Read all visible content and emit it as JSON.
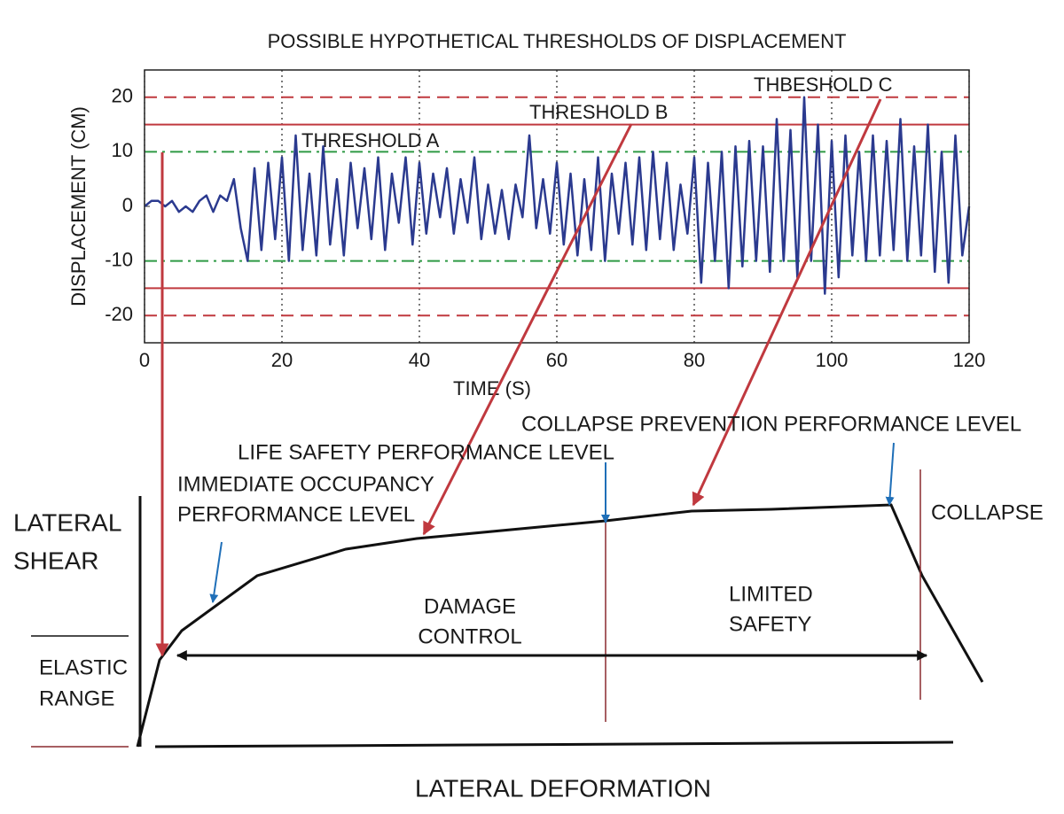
{
  "chart_data": {
    "type": "line",
    "title": "POSSIBLE HYPOTHETICAL THRESHOLDS OF DISPLACEMENT",
    "xlabel": "TIME (S)",
    "ylabel": "DISPLACEMENT (CM)",
    "xlim": [
      0,
      120
    ],
    "ylim": [
      -25,
      25
    ],
    "xticks": [
      0,
      20,
      40,
      60,
      80,
      100,
      120
    ],
    "yticks": [
      -20,
      -10,
      0,
      10,
      20
    ],
    "grid": true,
    "color": "#2b3a8f",
    "thresholds": [
      {
        "label": "THRESHOLD  A",
        "value": 10,
        "color": "#2f9a45",
        "style": "dashdot"
      },
      {
        "label": "THRESHOLD  B",
        "value": 15,
        "color": "#c0393f",
        "style": "solid"
      },
      {
        "label": "THBESHOLD  C",
        "value": 20,
        "color": "#c0393f",
        "style": "dashed"
      }
    ],
    "x": [
      0,
      1,
      2,
      3,
      4,
      5,
      6,
      7,
      8,
      9,
      10,
      11,
      12,
      13,
      14,
      15,
      16,
      17,
      18,
      19,
      20,
      21,
      22,
      23,
      24,
      25,
      26,
      27,
      28,
      29,
      30,
      31,
      32,
      33,
      34,
      35,
      36,
      37,
      38,
      39,
      40,
      41,
      42,
      43,
      44,
      45,
      46,
      47,
      48,
      49,
      50,
      51,
      52,
      53,
      54,
      55,
      56,
      57,
      58,
      59,
      60,
      61,
      62,
      63,
      64,
      65,
      66,
      67,
      68,
      69,
      70,
      71,
      72,
      73,
      74,
      75,
      76,
      77,
      78,
      79,
      80,
      81,
      82,
      83,
      84,
      85,
      86,
      87,
      88,
      89,
      90,
      91,
      92,
      93,
      94,
      95,
      96,
      97,
      98,
      99,
      100,
      101,
      102,
      103,
      104,
      105,
      106,
      107,
      108,
      109,
      110,
      111,
      112,
      113,
      114,
      115,
      116,
      117,
      118,
      119,
      120
    ],
    "values": [
      0,
      1,
      1,
      0,
      1,
      -1,
      0,
      -1,
      1,
      2,
      -1,
      2,
      1,
      5,
      -4,
      -10,
      7,
      -8,
      8,
      -6,
      9,
      -10,
      13,
      -8,
      6,
      -9,
      11,
      -7,
      5,
      -9,
      8,
      -4,
      7,
      -6,
      9,
      -8,
      6,
      -3,
      9,
      -7,
      8,
      -5,
      6,
      -2,
      7,
      -5,
      5,
      -3,
      9,
      -6,
      4,
      -5,
      3,
      -6,
      4,
      -2,
      13,
      -4,
      5,
      -5,
      8,
      -7,
      6,
      -9,
      5,
      -8,
      9,
      -10,
      6,
      -5,
      8,
      -7,
      9,
      -8,
      10,
      -6,
      8,
      -8,
      4,
      -5,
      9,
      -14,
      8,
      -10,
      10,
      -15,
      11,
      -11,
      12,
      -10,
      11,
      -12,
      16,
      -10,
      14,
      -13,
      20,
      -10,
      15,
      -16,
      12,
      -13,
      13,
      -9,
      10,
      -10,
      13,
      -9,
      12,
      -8,
      16,
      -10,
      11,
      -9,
      15,
      -12,
      10,
      -14,
      13,
      -9,
      0
    ]
  },
  "diagram": {
    "y_axis_label": [
      "LATERAL",
      "SHEAR"
    ],
    "x_axis_label": "LATERAL DEFORMATION",
    "elastic_range": [
      "ELASTIC",
      "RANGE"
    ],
    "immediate_occupancy": [
      "IMMEDIATE OCCUPANCY",
      "PERFORMANCE LEVEL"
    ],
    "life_safety": "LIFE SAFETY PERFORMANCE LEVEL",
    "collapse_prevention": "COLLAPSE PREVENTION PERFORMANCE LEVEL",
    "damage_control": [
      "DAMAGE",
      "CONTROL"
    ],
    "limited_safety": [
      "LIMITED",
      "SAFETY"
    ],
    "collapse": "COLLAPSE"
  }
}
